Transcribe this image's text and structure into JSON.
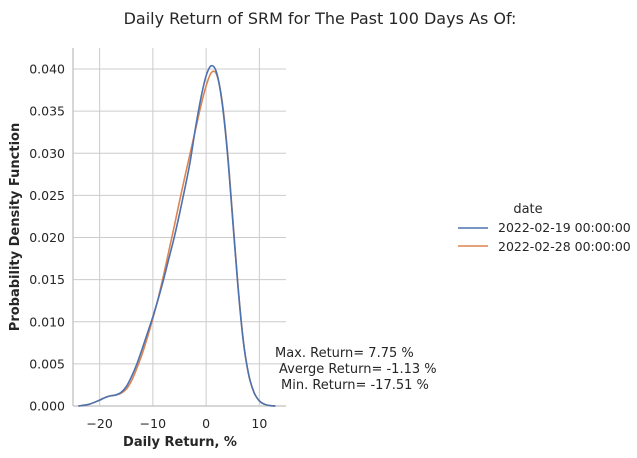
{
  "chart_data": {
    "type": "line",
    "title": "Daily Return of SRM for The Past 100 Days As Of:",
    "xlabel": "Daily Return, %",
    "ylabel": "Probability Density Function",
    "xlim": [
      -25,
      15
    ],
    "ylim": [
      0,
      0.0425
    ],
    "x_ticks": [
      -20,
      -10,
      0,
      10
    ],
    "y_ticks": [
      0.0,
      0.005,
      0.01,
      0.015,
      0.02,
      0.025,
      0.03,
      0.035,
      0.04
    ],
    "y_tick_labels": [
      "0.000",
      "0.005",
      "0.010",
      "0.015",
      "0.020",
      "0.025",
      "0.030",
      "0.035",
      "0.040"
    ],
    "grid": true,
    "legend": {
      "title": "date",
      "placement": "right"
    },
    "series": [
      {
        "name": "2022-02-19 00:00:00",
        "color": "#4c72b0",
        "x": [
          -24,
          -22,
          -20,
          -19,
          -18,
          -17,
          -16,
          -15,
          -14,
          -13,
          -12,
          -11,
          -10,
          -9,
          -8,
          -7,
          -6,
          -5,
          -4,
          -3,
          -2,
          -1,
          0,
          1,
          2,
          3,
          4,
          5,
          6,
          7,
          8,
          9,
          10,
          11,
          12,
          13
        ],
        "y": [
          0.0,
          0.0002,
          0.0007,
          0.001,
          0.0012,
          0.0013,
          0.0016,
          0.0023,
          0.0035,
          0.005,
          0.0068,
          0.0087,
          0.0106,
          0.0127,
          0.015,
          0.0175,
          0.02,
          0.0228,
          0.0258,
          0.029,
          0.033,
          0.0365,
          0.0392,
          0.0404,
          0.0395,
          0.036,
          0.03,
          0.022,
          0.014,
          0.0076,
          0.0037,
          0.0016,
          0.0006,
          0.0002,
          5e-05,
          0.0
        ]
      },
      {
        "name": "2022-02-28 00:00:00",
        "color": "#dd8452",
        "x": [
          -24,
          -22,
          -20,
          -19,
          -18,
          -17,
          -16,
          -15,
          -14,
          -13,
          -12,
          -11,
          -10,
          -9,
          -8,
          -7,
          -6,
          -5,
          -4,
          -3,
          -2,
          -1,
          0,
          1,
          2,
          3,
          4,
          5,
          6,
          7,
          8,
          9,
          10,
          11,
          12,
          13
        ],
        "y": [
          0.0,
          0.0002,
          0.0007,
          0.001,
          0.0012,
          0.0013,
          0.0015,
          0.002,
          0.003,
          0.0045,
          0.0062,
          0.0082,
          0.0104,
          0.0128,
          0.0155,
          0.0184,
          0.0213,
          0.0243,
          0.0272,
          0.03,
          0.0328,
          0.0356,
          0.038,
          0.0396,
          0.0393,
          0.0362,
          0.0303,
          0.0223,
          0.0142,
          0.0077,
          0.0037,
          0.0016,
          0.0006,
          0.0002,
          5e-05,
          0.0
        ]
      }
    ],
    "annotations": [
      "Max. Return= 7.75 %",
      "Averge Return= -1.13 %",
      "Min. Return= -17.51 %"
    ]
  }
}
